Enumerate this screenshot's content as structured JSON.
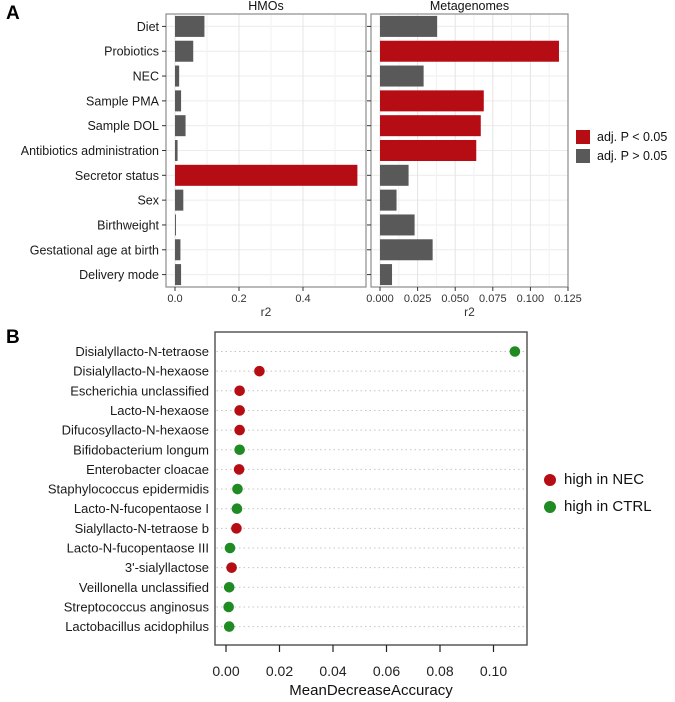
{
  "figure": {
    "panel_a_label": "A",
    "panel_b_label": "B"
  },
  "colors": {
    "significant_red": "#b50d13",
    "nonsignificant_gray": "#595959",
    "nec_red": "#b50d13",
    "ctrl_green": "#1f8b22"
  },
  "legend_a": {
    "items": [
      {
        "label": "adj. P < 0.05",
        "color_key": "significant_red"
      },
      {
        "label": "adj. P > 0.05",
        "color_key": "nonsignificant_gray"
      }
    ]
  },
  "legend_b": {
    "items": [
      {
        "label": "high in NEC",
        "color_key": "nec_red"
      },
      {
        "label": "high in CTRL",
        "color_key": "ctrl_green"
      }
    ]
  },
  "chart_data": [
    {
      "id": "hmos",
      "type": "bar",
      "orientation": "horizontal",
      "title": "HMOs",
      "xlabel": "r2",
      "categories": [
        "Diet",
        "Probiotics",
        "NEC",
        "Sample PMA",
        "Sample DOL",
        "Antibiotics administration",
        "Secretor status",
        "Sex",
        "Birthweight",
        "Gestational age at birth",
        "Delivery mode"
      ],
      "values": [
        0.092,
        0.057,
        0.013,
        0.019,
        0.033,
        0.008,
        0.57,
        0.026,
        0.003,
        0.017,
        0.019
      ],
      "significant": [
        false,
        false,
        false,
        false,
        false,
        false,
        true,
        false,
        false,
        false,
        false
      ],
      "xticks": [
        0.0,
        0.2,
        0.4
      ],
      "xtick_labels": [
        "0.0",
        "0.2",
        "0.4"
      ],
      "xlim": [
        0,
        0.6
      ],
      "grid": true
    },
    {
      "id": "metagenomes",
      "type": "bar",
      "orientation": "horizontal",
      "title": "Metagenomes",
      "xlabel": "r2",
      "categories": [
        "Diet",
        "Probiotics",
        "NEC",
        "Sample PMA",
        "Sample DOL",
        "Antibiotics administration",
        "Secretor status",
        "Sex",
        "Birthweight",
        "Gestational age at birth",
        "Delivery mode"
      ],
      "values": [
        0.038,
        0.119,
        0.029,
        0.069,
        0.067,
        0.064,
        0.019,
        0.011,
        0.023,
        0.035,
        0.008
      ],
      "significant": [
        false,
        true,
        false,
        true,
        true,
        true,
        false,
        false,
        false,
        false,
        false
      ],
      "xticks": [
        0,
        0.025,
        0.05,
        0.075,
        0.1,
        0.125
      ],
      "xtick_labels": [
        "0.000",
        "0.025",
        "0.050",
        "0.075",
        "0.100",
        "0.125"
      ],
      "xlim": [
        0,
        0.125
      ],
      "grid": true
    },
    {
      "id": "mean-decrease-accuracy",
      "type": "scatter",
      "orientation": "horizontal-dotplot",
      "title": "",
      "xlabel": "MeanDecreaseAccuracy",
      "categories": [
        "Disialyllacto-N-tetraose",
        "Disialyllacto-N-hexaose",
        "Escherichia unclassified",
        "Lacto-N-hexaose",
        "Difucosyllacto-N-hexaose",
        "Bifidobacterium longum",
        "Enterobacter cloacae",
        "Staphylococcus epidermidis",
        "Lacto-N-fucopentaose I",
        "Sialyllacto-N-tetraose b",
        "Lacto-N-fucopentaose III",
        "3'-sialyllactose",
        "Veillonella unclassified",
        "Streptococcus anginosus",
        "Lactobacillus acidophilus"
      ],
      "values": [
        0.108,
        0.0125,
        0.0051,
        0.0051,
        0.0051,
        0.0051,
        0.0049,
        0.0043,
        0.0041,
        0.0039,
        0.0015,
        0.0021,
        0.0012,
        0.001,
        0.0012
      ],
      "group": [
        "CTRL",
        "NEC",
        "NEC",
        "NEC",
        "NEC",
        "CTRL",
        "NEC",
        "CTRL",
        "CTRL",
        "NEC",
        "CTRL",
        "NEC",
        "CTRL",
        "CTRL",
        "CTRL"
      ],
      "xticks": [
        0,
        0.02,
        0.04,
        0.06,
        0.08,
        0.1
      ],
      "xtick_labels": [
        "0.00",
        "0.02",
        "0.04",
        "0.06",
        "0.08",
        "0.10"
      ],
      "xlim": [
        0,
        0.1126
      ],
      "grid": "dotted-horizontal"
    }
  ]
}
